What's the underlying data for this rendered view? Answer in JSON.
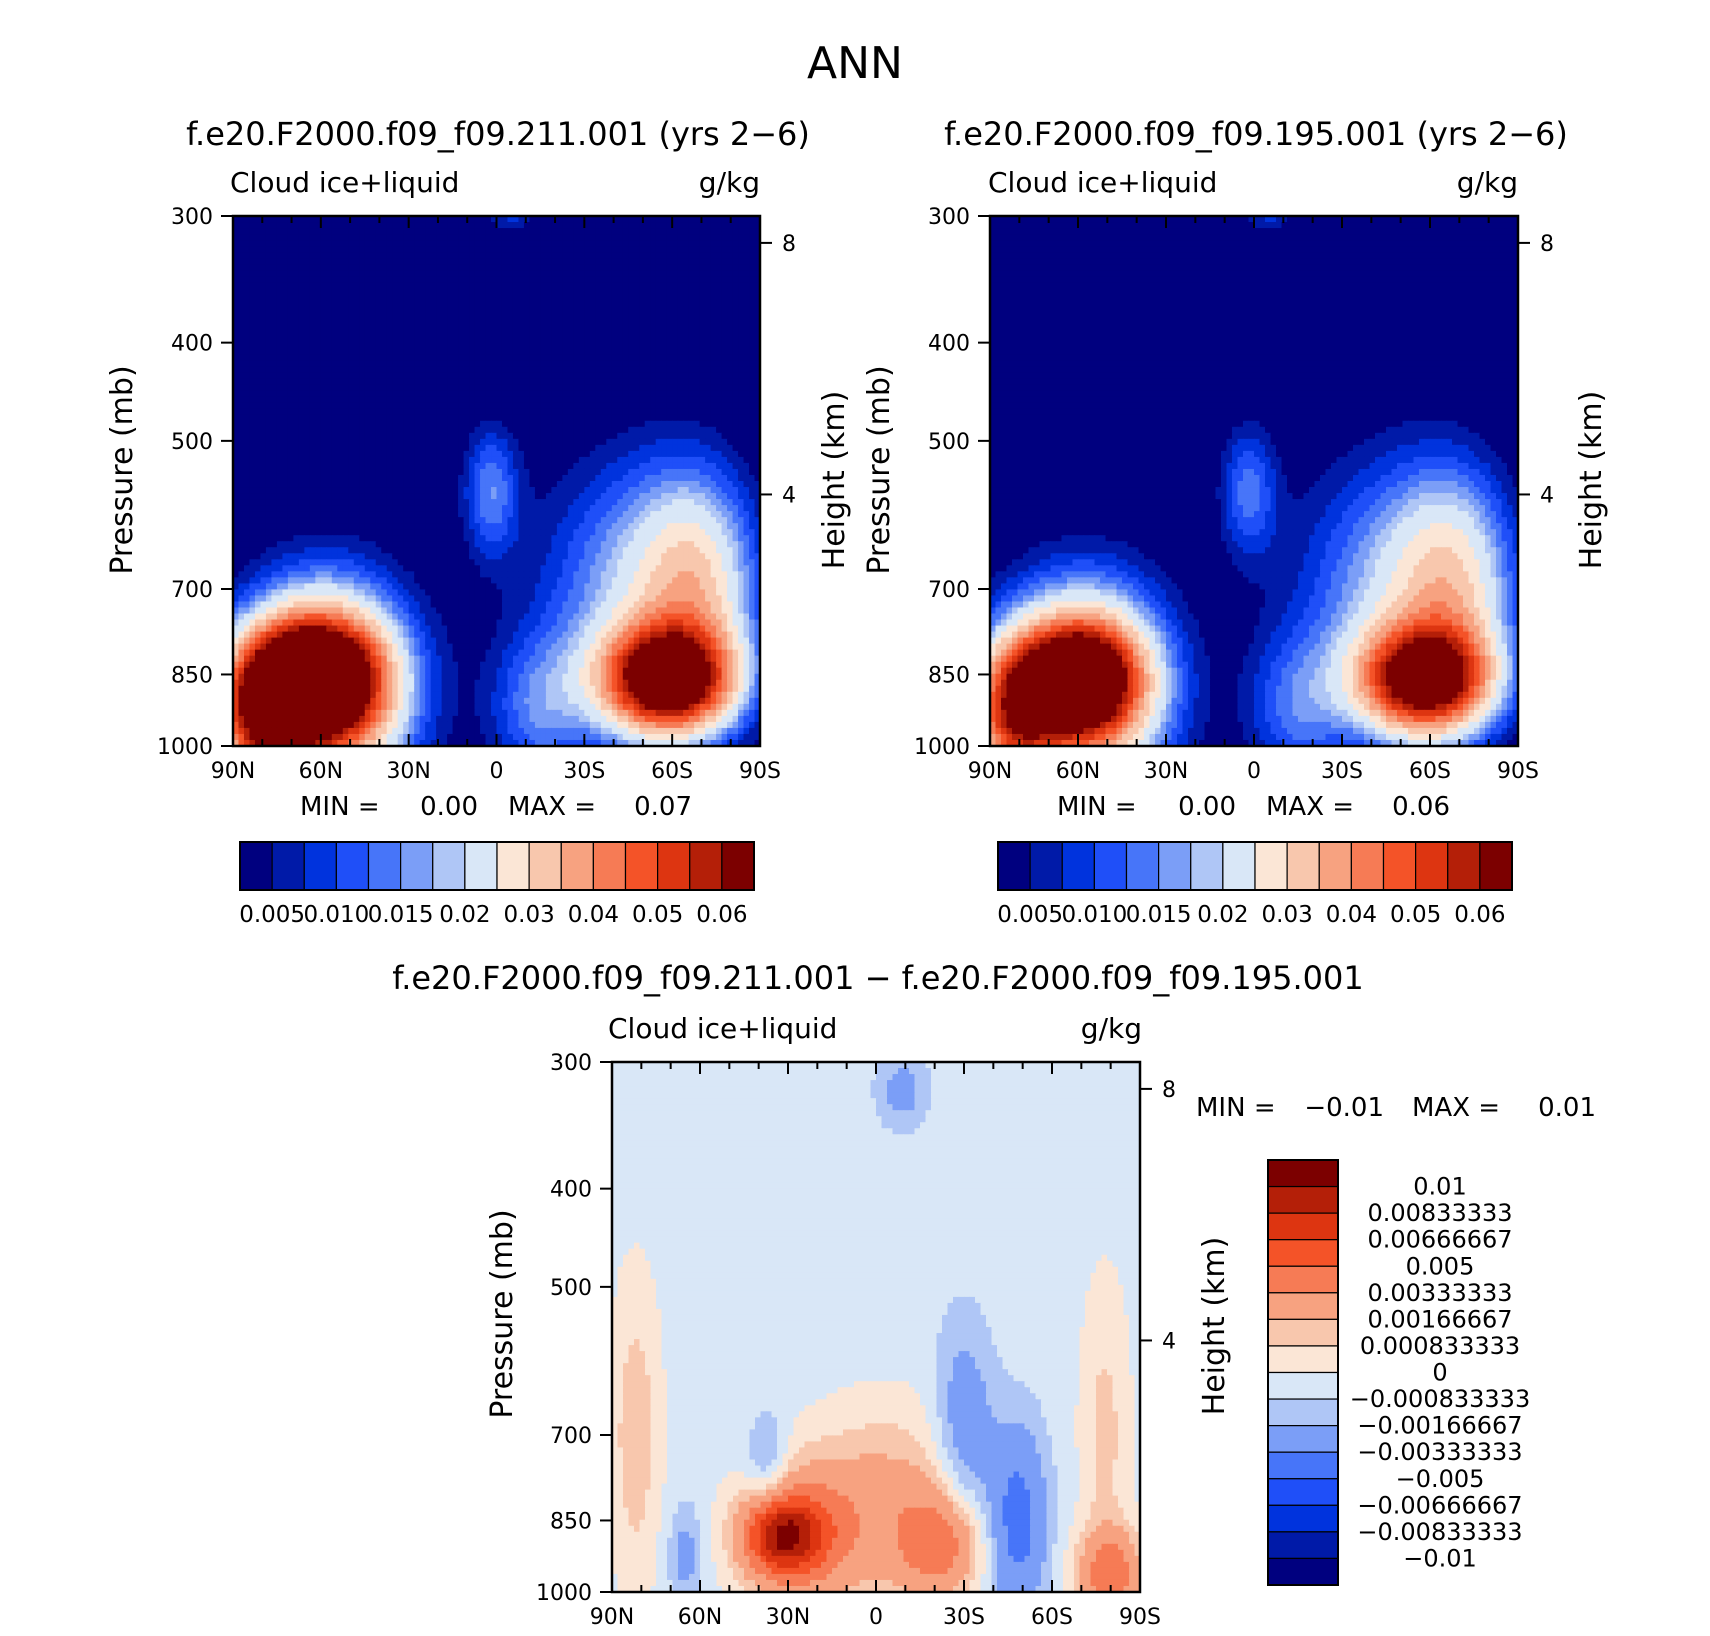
{
  "figure_title": "ANN",
  "chart_data": [
    {
      "id": "panel1",
      "type": "heatmap",
      "title": "f.e20.F2000.f09_f09.211.001 (yrs 2−6)",
      "left_label": "Cloud ice+liquid",
      "units": "g/kg",
      "ylabel": "Pressure (mb)",
      "y2label": "Height (km)",
      "x_ticks": [
        "90N",
        "60N",
        "30N",
        "0",
        "30S",
        "60S",
        "90S"
      ],
      "x_values": [
        -90,
        -60,
        -30,
        0,
        30,
        60,
        90
      ],
      "xlim": [
        -90,
        90
      ],
      "y_ticks": [
        "300",
        "400",
        "500",
        "700",
        "850",
        "1000"
      ],
      "y_values": [
        300,
        400,
        500,
        700,
        850,
        1000
      ],
      "ylim": [
        1000,
        300
      ],
      "yscale": "log",
      "y2_ticks": [
        "8",
        "4"
      ],
      "y2_values": [
        8,
        4
      ],
      "min_label": "MIN =",
      "min_value": "0.00",
      "max_label": "MAX =",
      "max_value": "0.07",
      "colorbar_labels": [
        "0.005",
        "0.010",
        "0.015",
        "0.02",
        "0.03",
        "0.04",
        "0.05",
        "0.06"
      ],
      "levels": [
        0.005,
        0.0075,
        0.01,
        0.0125,
        0.015,
        0.0175,
        0.02,
        0.025,
        0.03,
        0.035,
        0.04,
        0.045,
        0.05,
        0.055,
        0.06
      ],
      "colors": [
        "#00007f",
        "#001aa8",
        "#0033dd",
        "#1f4ff8",
        "#4775f9",
        "#7b9ef7",
        "#afc6f6",
        "#d9e7f7",
        "#fbe6d6",
        "#f8c7ad",
        "#f7a280",
        "#f67b55",
        "#f45328",
        "#dd3511",
        "#b41f08",
        "#7c0000"
      ],
      "features": [
        {
          "lat": -62,
          "p": 860,
          "amp": 0.07,
          "slat": 14,
          "slogp": 0.085
        },
        {
          "lat": -80,
          "p": 930,
          "amp": 0.045,
          "slat": 11,
          "slogp": 0.11
        },
        {
          "lat": -58,
          "p": 880,
          "amp": 0.045,
          "slat": 20,
          "slogp": 0.17
        },
        {
          "lat": 58,
          "p": 860,
          "amp": 0.068,
          "slat": 15,
          "slogp": 0.08
        },
        {
          "lat": 48,
          "p": 720,
          "amp": 0.018,
          "slat": 24,
          "slogp": 0.23
        },
        {
          "lat": 68,
          "p": 700,
          "amp": 0.022,
          "slat": 14,
          "slogp": 0.18
        },
        {
          "lat": -2,
          "p": 560,
          "amp": 0.014,
          "slat": 7,
          "slogp": 0.11
        },
        {
          "lat": 5,
          "p": 300,
          "amp": 0.008,
          "slat": 7,
          "slogp": 0.03
        },
        {
          "lat": 14,
          "p": 920,
          "amp": 0.012,
          "slat": 12,
          "slogp": 0.12
        }
      ]
    },
    {
      "id": "panel2",
      "type": "heatmap",
      "title": "f.e20.F2000.f09_f09.195.001 (yrs 2−6)",
      "left_label": "Cloud ice+liquid",
      "units": "g/kg",
      "ylabel": "Pressure (mb)",
      "y2label": "Height (km)",
      "x_ticks": [
        "90N",
        "60N",
        "30N",
        "0",
        "30S",
        "60S",
        "90S"
      ],
      "x_values": [
        -90,
        -60,
        -30,
        0,
        30,
        60,
        90
      ],
      "xlim": [
        -90,
        90
      ],
      "y_ticks": [
        "300",
        "400",
        "500",
        "700",
        "850",
        "1000"
      ],
      "y_values": [
        300,
        400,
        500,
        700,
        850,
        1000
      ],
      "ylim": [
        1000,
        300
      ],
      "yscale": "log",
      "y2_ticks": [
        "8",
        "4"
      ],
      "y2_values": [
        8,
        4
      ],
      "min_label": "MIN =",
      "min_value": "0.00",
      "max_label": "MAX =",
      "max_value": "0.06",
      "colorbar_labels": [
        "0.005",
        "0.010",
        "0.015",
        "0.02",
        "0.03",
        "0.04",
        "0.05",
        "0.06"
      ],
      "levels": [
        0.005,
        0.0075,
        0.01,
        0.0125,
        0.015,
        0.0175,
        0.02,
        0.025,
        0.03,
        0.035,
        0.04,
        0.045,
        0.05,
        0.055,
        0.06
      ],
      "colors": [
        "#00007f",
        "#001aa8",
        "#0033dd",
        "#1f4ff8",
        "#4775f9",
        "#7b9ef7",
        "#afc6f6",
        "#d9e7f7",
        "#fbe6d6",
        "#f8c7ad",
        "#f7a280",
        "#f67b55",
        "#f45328",
        "#dd3511",
        "#b41f08",
        "#7c0000"
      ],
      "features": [
        {
          "lat": -60,
          "p": 860,
          "amp": 0.062,
          "slat": 13,
          "slogp": 0.08
        },
        {
          "lat": -82,
          "p": 930,
          "amp": 0.04,
          "slat": 10,
          "slogp": 0.11
        },
        {
          "lat": -58,
          "p": 880,
          "amp": 0.042,
          "slat": 20,
          "slogp": 0.17
        },
        {
          "lat": 58,
          "p": 860,
          "amp": 0.063,
          "slat": 15,
          "slogp": 0.08
        },
        {
          "lat": 48,
          "p": 720,
          "amp": 0.018,
          "slat": 24,
          "slogp": 0.23
        },
        {
          "lat": 68,
          "p": 700,
          "amp": 0.021,
          "slat": 14,
          "slogp": 0.18
        },
        {
          "lat": -2,
          "p": 560,
          "amp": 0.013,
          "slat": 7,
          "slogp": 0.11
        },
        {
          "lat": 5,
          "p": 300,
          "amp": 0.008,
          "slat": 7,
          "slogp": 0.03
        },
        {
          "lat": 14,
          "p": 920,
          "amp": 0.011,
          "slat": 12,
          "slogp": 0.12
        }
      ]
    },
    {
      "id": "panel3",
      "type": "heatmap",
      "title": "f.e20.F2000.f09_f09.211.001 − f.e20.F2000.f09_f09.195.001",
      "left_label": "Cloud ice+liquid",
      "units": "g/kg",
      "ylabel": "Pressure (mb)",
      "y2label": "Height (km)",
      "x_ticks": [
        "90N",
        "60N",
        "30N",
        "0",
        "30S",
        "60S",
        "90S"
      ],
      "x_values": [
        -90,
        -60,
        -30,
        0,
        30,
        60,
        90
      ],
      "xlim": [
        -90,
        90
      ],
      "y_ticks": [
        "300",
        "400",
        "500",
        "700",
        "850",
        "1000"
      ],
      "y_values": [
        300,
        400,
        500,
        700,
        850,
        1000
      ],
      "ylim": [
        1000,
        300
      ],
      "yscale": "log",
      "y2_ticks": [
        "8",
        "4"
      ],
      "y2_values": [
        8,
        4
      ],
      "min_label": "MIN =",
      "min_value": "−0.01",
      "max_label": "MAX =",
      "max_value": "0.01",
      "colorbar_labels": [
        "0.01",
        "0.00833333",
        "0.00666667",
        "0.005",
        "0.00333333",
        "0.00166667",
        "0.000833333",
        "0",
        "−0.000833333",
        "−0.00166667",
        "−0.00333333",
        "−0.005",
        "−0.00666667",
        "−0.00833333",
        "−0.01"
      ],
      "levels": [
        -0.01,
        -0.00833333,
        -0.00666667,
        -0.005,
        -0.00333333,
        -0.00166667,
        -0.000833333,
        0,
        0.000833333,
        0.00166667,
        0.00333333,
        0.005,
        0.00666667,
        0.00833333,
        0.01
      ],
      "colors": [
        "#00007f",
        "#001aa8",
        "#0033dd",
        "#1f4ff8",
        "#4775f9",
        "#7b9ef7",
        "#afc6f6",
        "#d9e7f7",
        "#fbe6d6",
        "#f8c7ad",
        "#f7a280",
        "#f67b55",
        "#f45328",
        "#dd3511",
        "#b41f08",
        "#7c0000"
      ],
      "base": -0.0004,
      "features": [
        {
          "lat": -32,
          "p": 880,
          "amp": 0.0075,
          "slat": 9,
          "slogp": 0.06
        },
        {
          "lat": -25,
          "p": 880,
          "amp": 0.004,
          "slat": 14,
          "slogp": 0.11
        },
        {
          "lat": 22,
          "p": 900,
          "amp": 0.004,
          "slat": 10,
          "slogp": 0.08
        },
        {
          "lat": 5,
          "p": 820,
          "amp": 0.0025,
          "slat": 20,
          "slogp": 0.15
        },
        {
          "lat": 80,
          "p": 960,
          "amp": 0.0045,
          "slat": 8,
          "slogp": 0.07
        },
        {
          "lat": 78,
          "p": 700,
          "amp": 0.0015,
          "slat": 6,
          "slogp": 0.25
        },
        {
          "lat": -82,
          "p": 700,
          "amp": 0.0018,
          "slat": 6,
          "slogp": 0.25
        },
        {
          "lat": 48,
          "p": 850,
          "amp": -0.004,
          "slat": 7,
          "slogp": 0.15
        },
        {
          "lat": 30,
          "p": 700,
          "amp": -0.0025,
          "slat": 7,
          "slogp": 0.17
        },
        {
          "lat": -37,
          "p": 750,
          "amp": -0.002,
          "slat": 5,
          "slogp": 0.08
        },
        {
          "lat": 9,
          "p": 320,
          "amp": -0.0018,
          "slat": 6,
          "slogp": 0.06
        },
        {
          "lat": -65,
          "p": 920,
          "amp": -0.0018,
          "slat": 4,
          "slogp": 0.08
        }
      ]
    }
  ]
}
